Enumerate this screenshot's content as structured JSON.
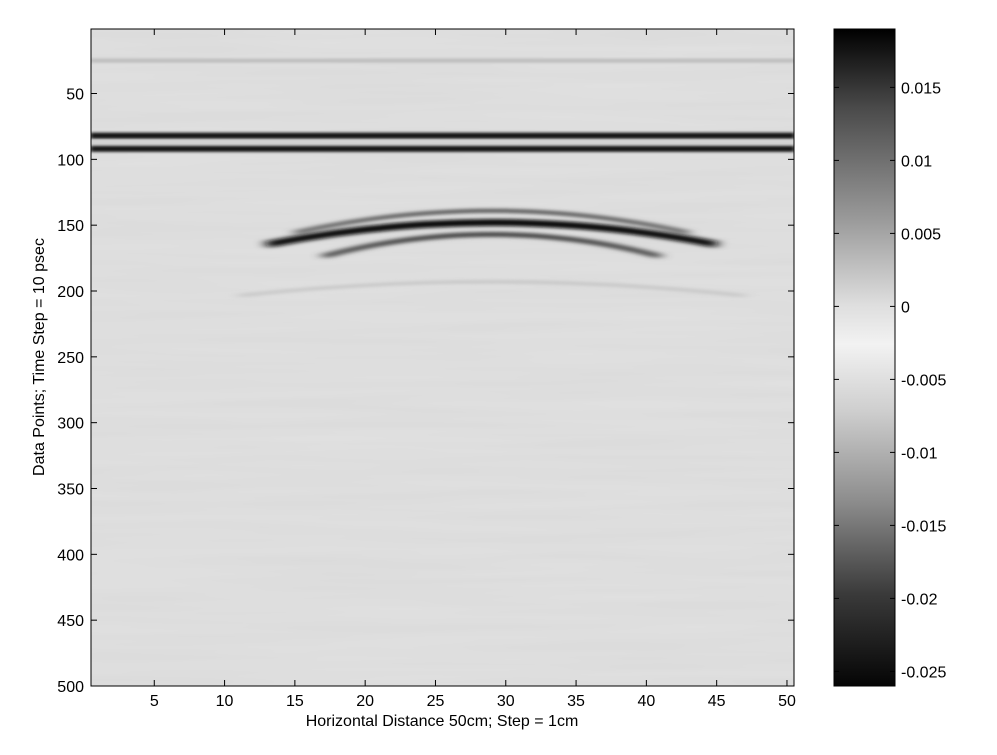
{
  "chart_data": {
    "type": "heatmap",
    "title": "",
    "xlabel": "Horizontal Distance 50cm; Step = 1cm",
    "ylabel": "Data Points; Time Step = 10 psec",
    "xlim": [
      0.5,
      50.5
    ],
    "ylim": [
      500,
      1
    ],
    "x_ticks": [
      5,
      10,
      15,
      20,
      25,
      30,
      35,
      40,
      45,
      50
    ],
    "y_ticks": [
      50,
      100,
      150,
      200,
      250,
      300,
      350,
      400,
      450,
      500
    ],
    "colormap": "gray",
    "colorbar": {
      "range": [
        -0.026,
        0.019
      ],
      "ticks": [
        0.015,
        0.01,
        0.005,
        0,
        -0.005,
        -0.01,
        -0.015,
        -0.02,
        -0.025
      ],
      "tick_labels": [
        "0.015",
        "0.01",
        "0.005",
        "0",
        "-0.005",
        "-0.01",
        "-0.015",
        "-0.02",
        "-0.025"
      ]
    },
    "features": [
      {
        "name": "surface reflection (upper band)",
        "x_range": [
          1,
          50
        ],
        "y": 82,
        "value": 0.018
      },
      {
        "name": "surface reflection (light gap)",
        "x_range": [
          1,
          50
        ],
        "y": 87,
        "value": -0.013
      },
      {
        "name": "surface reflection (lower band)",
        "x_range": [
          1,
          50
        ],
        "y": 92,
        "value": 0.018
      },
      {
        "name": "early faint band",
        "x_range": [
          1,
          50
        ],
        "y": 25,
        "value": 0.004
      },
      {
        "name": "hyperbola apex",
        "x_center": 29,
        "y_apex": 148,
        "value": 0.018
      },
      {
        "name": "faint secondary arc",
        "x_center": 29,
        "y_apex": 193,
        "value": 0.003
      }
    ]
  }
}
